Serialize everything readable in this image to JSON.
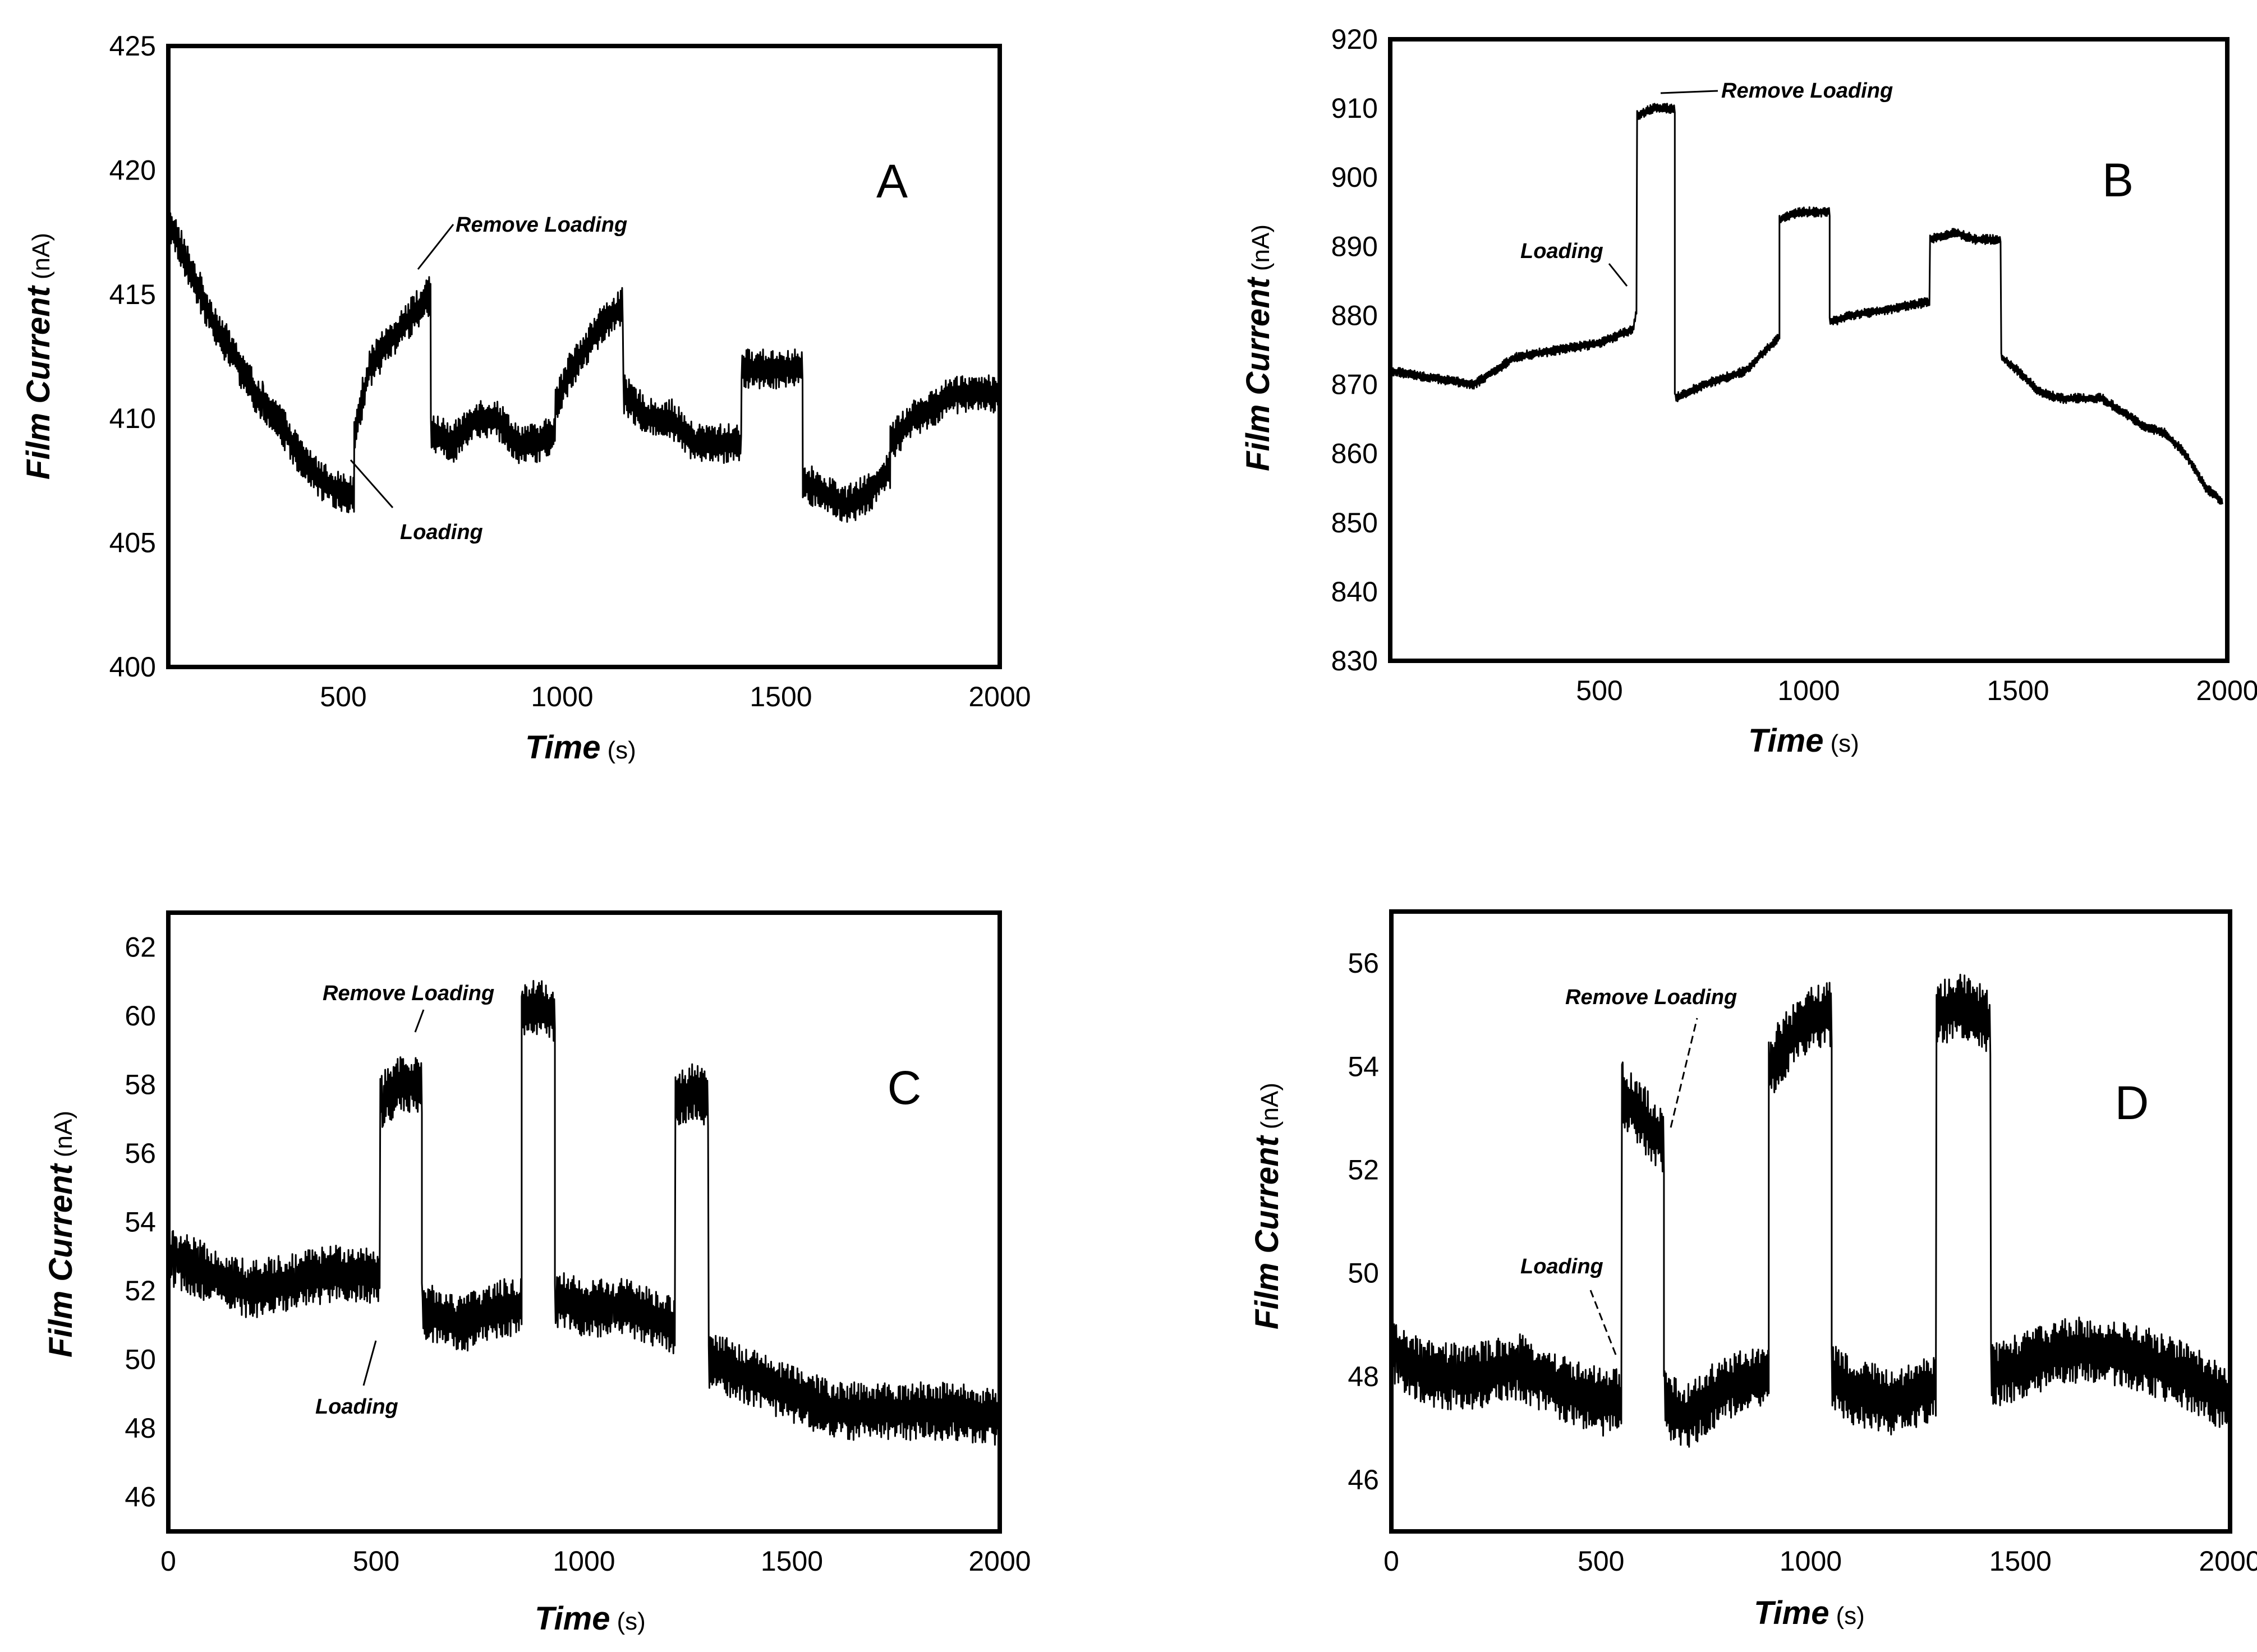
{
  "chart_data": [
    {
      "type": "line",
      "panel_label": "A",
      "xlabel": "Time",
      "xlabel_unit": "(s)",
      "ylabel": "Film Current",
      "ylabel_unit": "(nA)",
      "xlim": [
        100,
        2000
      ],
      "ylim": [
        400,
        425
      ],
      "xticks": [
        500,
        1000,
        1500,
        2000
      ],
      "yticks": [
        400,
        405,
        410,
        415,
        420,
        425
      ],
      "grid": false,
      "series": [
        {
          "segments": [
            {
              "x": [
                100,
                150,
                200,
                250,
                300,
                350,
                400,
                450,
                500,
                525
              ],
              "y": [
                418,
                416,
                414,
                412.5,
                411,
                410,
                408.5,
                407.5,
                407,
                407
              ]
            },
            {
              "x": [
                525,
                560,
                600,
                650,
                700
              ],
              "y": [
                409.5,
                412,
                413,
                414,
                415
              ]
            },
            {
              "x": [
                700,
                750,
                800,
                850,
                900,
                950,
                985
              ],
              "y": [
                409.5,
                409,
                410,
                410,
                409,
                409,
                409.5
              ]
            },
            {
              "x": [
                985,
                1020,
                1060,
                1100,
                1140
              ],
              "y": [
                410.5,
                412,
                413,
                414,
                414.5
              ]
            },
            {
              "x": [
                1140,
                1200,
                1250,
                1300,
                1350,
                1410
              ],
              "y": [
                411,
                410,
                410,
                409,
                409,
                409
              ]
            },
            {
              "x": [
                1410,
                1450,
                1500,
                1550
              ],
              "y": [
                412,
                412,
                412,
                412
              ]
            },
            {
              "x": [
                1550,
                1600,
                1650,
                1700,
                1750
              ],
              "y": [
                407.5,
                407,
                406.5,
                407,
                408
              ]
            },
            {
              "x": [
                1750,
                1800,
                1850,
                1900,
                1950,
                2000
              ],
              "y": [
                409,
                410,
                410.5,
                411,
                411,
                411
              ]
            }
          ],
          "noise_amplitude": 1.6
        }
      ],
      "annotations": [
        {
          "text": "Remove Loading",
          "x": 700,
          "y": 415
        },
        {
          "text": "Loading",
          "x": 525,
          "y": 407
        }
      ]
    },
    {
      "type": "line",
      "panel_label": "B",
      "xlabel": "Time",
      "xlabel_unit": "(s)",
      "ylabel": "Film Current",
      "ylabel_unit": "(nA)",
      "xlim": [
        0,
        2000
      ],
      "ylim": [
        830,
        920
      ],
      "xticks": [
        500,
        1000,
        1500,
        2000
      ],
      "yticks": [
        830,
        840,
        850,
        860,
        870,
        880,
        890,
        900,
        910,
        920
      ],
      "grid": false,
      "series": [
        {
          "segments": [
            {
              "x": [
                0,
                100,
                200,
                300,
                400,
                500,
                580,
                590
              ],
              "y": [
                872,
                871,
                870,
                874,
                875,
                876,
                878,
                881
              ]
            },
            {
              "x": [
                590,
                630,
                680
              ],
              "y": [
                909,
                910,
                910
              ]
            },
            {
              "x": [
                680,
                750,
                850,
                930
              ],
              "y": [
                868,
                870,
                872,
                877
              ]
            },
            {
              "x": [
                930,
                980,
                1050
              ],
              "y": [
                894,
                895,
                895
              ]
            },
            {
              "x": [
                1050,
                1100,
                1200,
                1290
              ],
              "y": [
                879,
                880,
                881,
                882
              ]
            },
            {
              "x": [
                1290,
                1350,
                1400,
                1460
              ],
              "y": [
                891,
                892,
                891,
                891
              ]
            },
            {
              "x": [
                1460,
                1500,
                1550,
                1600,
                1650,
                1700,
                1750,
                1800,
                1850,
                1900,
                1950,
                1990
              ],
              "y": [
                874,
                872,
                869,
                868,
                868,
                868,
                866,
                864,
                863,
                860,
                855,
                853
              ]
            }
          ],
          "noise_amplitude": 1.4
        }
      ],
      "annotations": [
        {
          "text": "Remove Loading",
          "x": 640,
          "y": 911
        },
        {
          "text": "Loading",
          "x": 585,
          "y": 881
        }
      ]
    },
    {
      "type": "line",
      "panel_label": "C",
      "xlabel": "Time",
      "xlabel_unit": "(s)",
      "ylabel": "Film Current",
      "ylabel_unit": "(nA)",
      "xlim": [
        0,
        2000
      ],
      "ylim": [
        45,
        63
      ],
      "xticks": [
        0,
        500,
        1000,
        1500,
        2000
      ],
      "yticks": [
        46,
        48,
        50,
        52,
        54,
        56,
        58,
        60,
        62
      ],
      "grid": false,
      "series": [
        {
          "segments": [
            {
              "x": [
                0,
                100,
                200,
                300,
                400,
                510
              ],
              "y": [
                53,
                52.5,
                52,
                52.3,
                52.5,
                52.5
              ]
            },
            {
              "x": [
                510,
                560,
                610
              ],
              "y": [
                57.5,
                58,
                58
              ]
            },
            {
              "x": [
                610,
                700,
                800,
                850
              ],
              "y": [
                51.5,
                51,
                51.5,
                51.5
              ]
            },
            {
              "x": [
                850,
                890,
                930
              ],
              "y": [
                60,
                60.3,
                60
              ]
            },
            {
              "x": [
                930,
                1000,
                1100,
                1220
              ],
              "y": [
                51.8,
                51.5,
                51.5,
                51
              ]
            },
            {
              "x": [
                1220,
                1260,
                1300
              ],
              "y": [
                57.5,
                57.8,
                57.5
              ]
            },
            {
              "x": [
                1300,
                1400,
                1500,
                1600,
                1700,
                1800,
                1900,
                2000
              ],
              "y": [
                50,
                49.5,
                49,
                48.5,
                48.5,
                48.5,
                48.5,
                48.3
              ]
            }
          ],
          "noise_amplitude": 1.7
        }
      ],
      "annotations": [
        {
          "text": "Remove Loading",
          "x": 610,
          "y": 59
        },
        {
          "text": "Loading",
          "x": 510,
          "y": 50.5
        }
      ]
    },
    {
      "type": "line",
      "panel_label": "D",
      "xlabel": "Time",
      "xlabel_unit": "(s)",
      "ylabel": "Film Current",
      "ylabel_unit": "(nA)",
      "xlim": [
        0,
        2000
      ],
      "ylim": [
        45,
        57
      ],
      "xticks": [
        0,
        500,
        1000,
        1500,
        2000
      ],
      "yticks": [
        46,
        48,
        50,
        52,
        54,
        56
      ],
      "grid": false,
      "series": [
        {
          "segments": [
            {
              "x": [
                0,
                100,
                200,
                300,
                400,
                500,
                550
              ],
              "y": [
                48.5,
                48,
                48,
                48.2,
                47.8,
                47.5,
                47.5
              ]
            },
            {
              "x": [
                550,
                600,
                650
              ],
              "y": [
                53.5,
                53,
                52.5
              ]
            },
            {
              "x": [
                650,
                700,
                800,
                900
              ],
              "y": [
                47.5,
                47.2,
                47.8,
                48
              ]
            },
            {
              "x": [
                900,
                950,
                1000,
                1050
              ],
              "y": [
                54,
                54.5,
                55,
                55
              ]
            },
            {
              "x": [
                1050,
                1100,
                1200,
                1300
              ],
              "y": [
                48,
                47.7,
                47.5,
                47.8
              ]
            },
            {
              "x": [
                1300,
                1350,
                1400,
                1430
              ],
              "y": [
                55,
                55.2,
                55,
                54.8
              ]
            },
            {
              "x": [
                1430,
                1500,
                1600,
                1700,
                1800,
                1900,
                2000
              ],
              "y": [
                48,
                48.2,
                48.5,
                48.5,
                48.3,
                48,
                47.5
              ]
            }
          ],
          "noise_amplitude": 1.3
        }
      ],
      "annotations": [
        {
          "text": "Remove Loading",
          "x": 650,
          "y": 53
        },
        {
          "text": "Loading",
          "x": 550,
          "y": 48.5
        }
      ]
    }
  ]
}
